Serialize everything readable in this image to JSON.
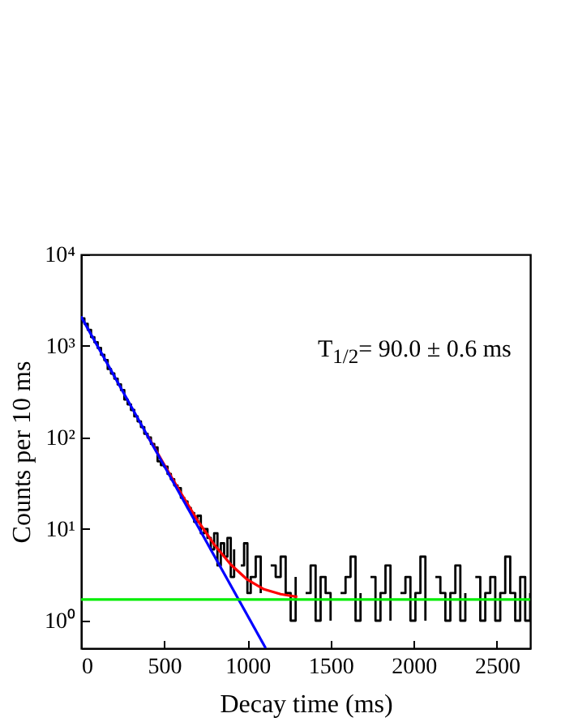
{
  "chart_data": {
    "type": "line",
    "xlabel": "Decay time (ms)",
    "ylabel": "Counts per 10 ms",
    "log": "y",
    "xlim": [
      0,
      2700
    ],
    "xticks": [
      0,
      500,
      1000,
      1500,
      2000,
      2500
    ],
    "ylim": [
      0.5,
      10000
    ],
    "yticks": [
      {
        "value": 1,
        "label": "10⁰"
      },
      {
        "value": 10,
        "label": "10¹"
      },
      {
        "value": 100,
        "label": "10²"
      },
      {
        "value": 1000,
        "label": "10³"
      },
      {
        "value": 10000,
        "label": "10⁴"
      }
    ],
    "grid": false,
    "annotations": [
      "T$_{1/2}$= 90.0 ± 0.6 ms"
    ],
    "ref_lines": [
      {
        "axis": "y",
        "value": 1.7,
        "color": "#00ee00"
      }
    ],
    "series": [
      {
        "type": "step",
        "color": "#000000",
        "x": [
          0,
          20,
          40,
          60,
          80,
          100,
          120,
          140,
          160,
          180,
          200,
          220,
          240,
          260,
          280,
          300,
          320,
          340,
          360,
          380,
          400,
          420,
          440,
          460,
          480,
          500,
          520,
          540,
          560,
          580,
          600,
          620,
          640,
          660,
          680,
          700,
          720,
          740,
          760,
          780,
          800,
          820,
          840,
          860,
          880,
          900,
          920,
          940,
          960,
          980,
          1000,
          1020,
          1050,
          1080,
          1110,
          1140,
          1170,
          1200,
          1230,
          1260,
          1290,
          1320,
          1350,
          1380,
          1410,
          1440,
          1470,
          1500,
          1530,
          1560,
          1590,
          1620,
          1650,
          1680,
          1710,
          1740,
          1770,
          1800,
          1830,
          1860,
          1890,
          1920,
          1950,
          1980,
          2010,
          2040,
          2070,
          2100,
          2130,
          2160,
          2190,
          2220,
          2250,
          2280,
          2310,
          2340,
          2370,
          2400,
          2430,
          2460,
          2490,
          2520,
          2550,
          2580,
          2610,
          2640,
          2670,
          2700
        ],
        "values": [
          2000,
          1750,
          1500,
          1250,
          1100,
          950,
          800,
          700,
          560,
          500,
          440,
          380,
          330,
          260,
          230,
          200,
          170,
          150,
          130,
          110,
          100,
          85,
          78,
          55,
          50,
          48,
          40,
          35,
          30,
          28,
          22,
          20,
          17,
          15,
          12,
          14,
          9,
          10,
          8,
          6,
          9,
          4,
          7,
          5,
          8,
          3,
          6,
          null,
          4,
          7,
          2,
          3,
          5,
          2,
          null,
          4,
          3,
          5,
          2,
          1,
          3,
          null,
          2,
          4,
          1,
          3,
          2,
          1,
          null,
          2,
          3,
          5,
          1,
          2,
          null,
          3,
          1,
          2,
          4,
          1,
          null,
          2,
          3,
          1,
          2,
          5,
          1,
          null,
          3,
          2,
          1,
          2,
          4,
          1,
          2,
          null,
          3,
          1,
          2,
          3,
          1,
          2,
          5,
          2,
          1,
          3,
          1,
          2
        ]
      },
      {
        "color": "#ff0000",
        "x": [
          400,
          500,
          600,
          700,
          800,
          900,
          1000,
          1100,
          1200,
          1300
        ],
        "values": [
          105,
          50.5,
          24.7,
          12.5,
          6.8,
          4.1,
          2.8,
          2.2,
          1.95,
          1.82
        ]
      },
      {
        "color": "#0000ff",
        "x": [
          0,
          1110
        ],
        "values": [
          2100,
          0.5
        ]
      }
    ]
  }
}
